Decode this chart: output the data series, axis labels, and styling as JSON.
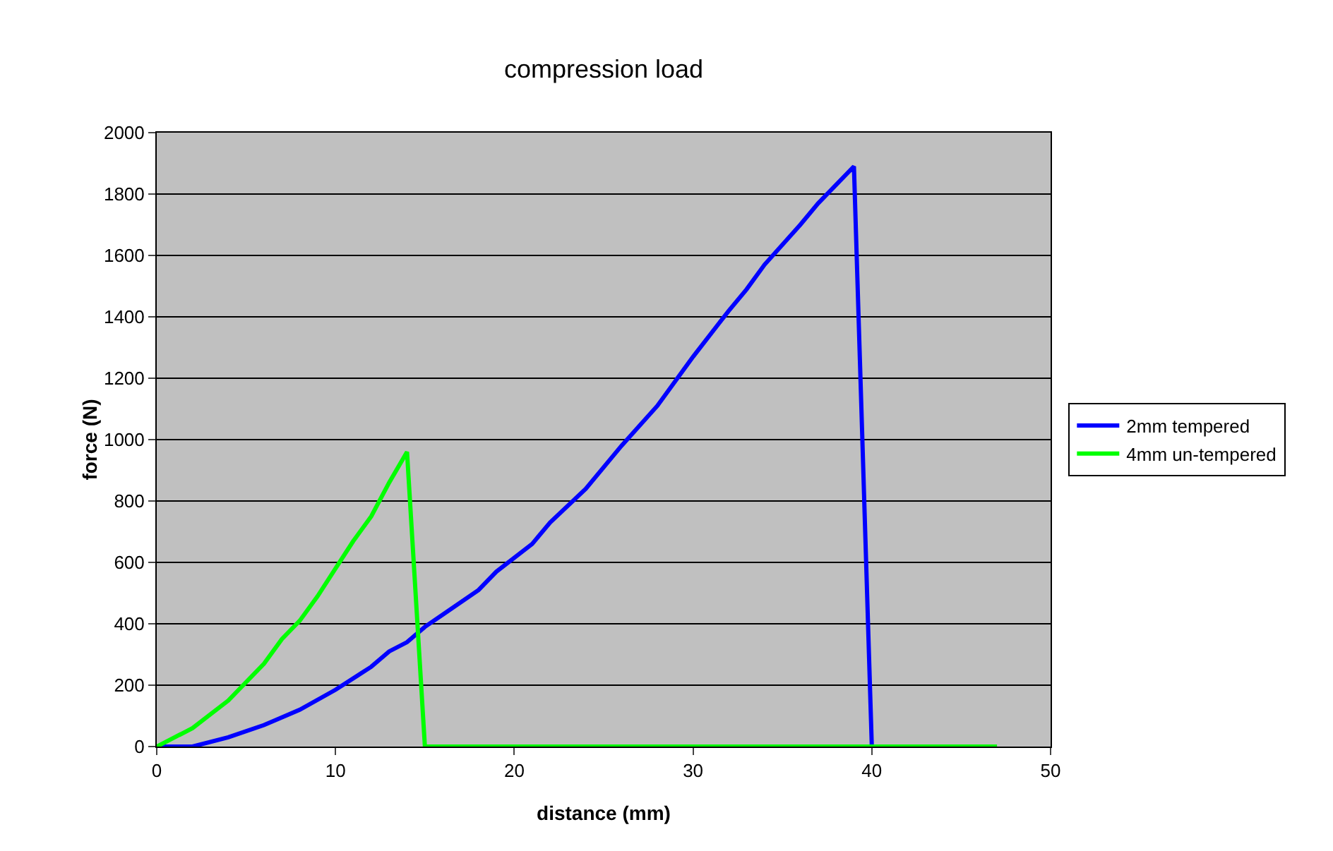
{
  "chart_data": {
    "type": "line",
    "title": "compression load",
    "xlabel": "distance (mm)",
    "ylabel": "force (N)",
    "xlim": [
      0,
      50
    ],
    "xticks": [
      0,
      10,
      20,
      30,
      40,
      50
    ],
    "ylim": [
      0,
      2000
    ],
    "yticks": [
      0,
      200,
      400,
      600,
      800,
      1000,
      1200,
      1400,
      1600,
      1800,
      2000
    ],
    "grid": "y",
    "legend": "right",
    "marker": "none",
    "line_style": "solid",
    "series": [
      {
        "name": "2mm tempered",
        "color": "#0000ff",
        "x": [
          0,
          2,
          4,
          6,
          8,
          10,
          12,
          13,
          14,
          15,
          16,
          18,
          19,
          21,
          22,
          24,
          26,
          28,
          30,
          32,
          33,
          34,
          36,
          37,
          39,
          40,
          47
        ],
        "values": [
          0,
          0,
          30,
          70,
          120,
          185,
          260,
          310,
          340,
          390,
          430,
          510,
          570,
          660,
          730,
          840,
          980,
          1110,
          1270,
          1420,
          1490,
          1570,
          1700,
          1770,
          1890,
          0,
          0
        ]
      },
      {
        "name": "4mm un-tempered",
        "color": "#00ff00",
        "x": [
          0,
          2,
          4,
          6,
          7,
          8,
          9,
          10,
          11,
          12,
          13,
          14,
          15,
          47
        ],
        "values": [
          0,
          60,
          150,
          270,
          350,
          410,
          490,
          580,
          670,
          750,
          860,
          960,
          0,
          0
        ]
      }
    ]
  }
}
